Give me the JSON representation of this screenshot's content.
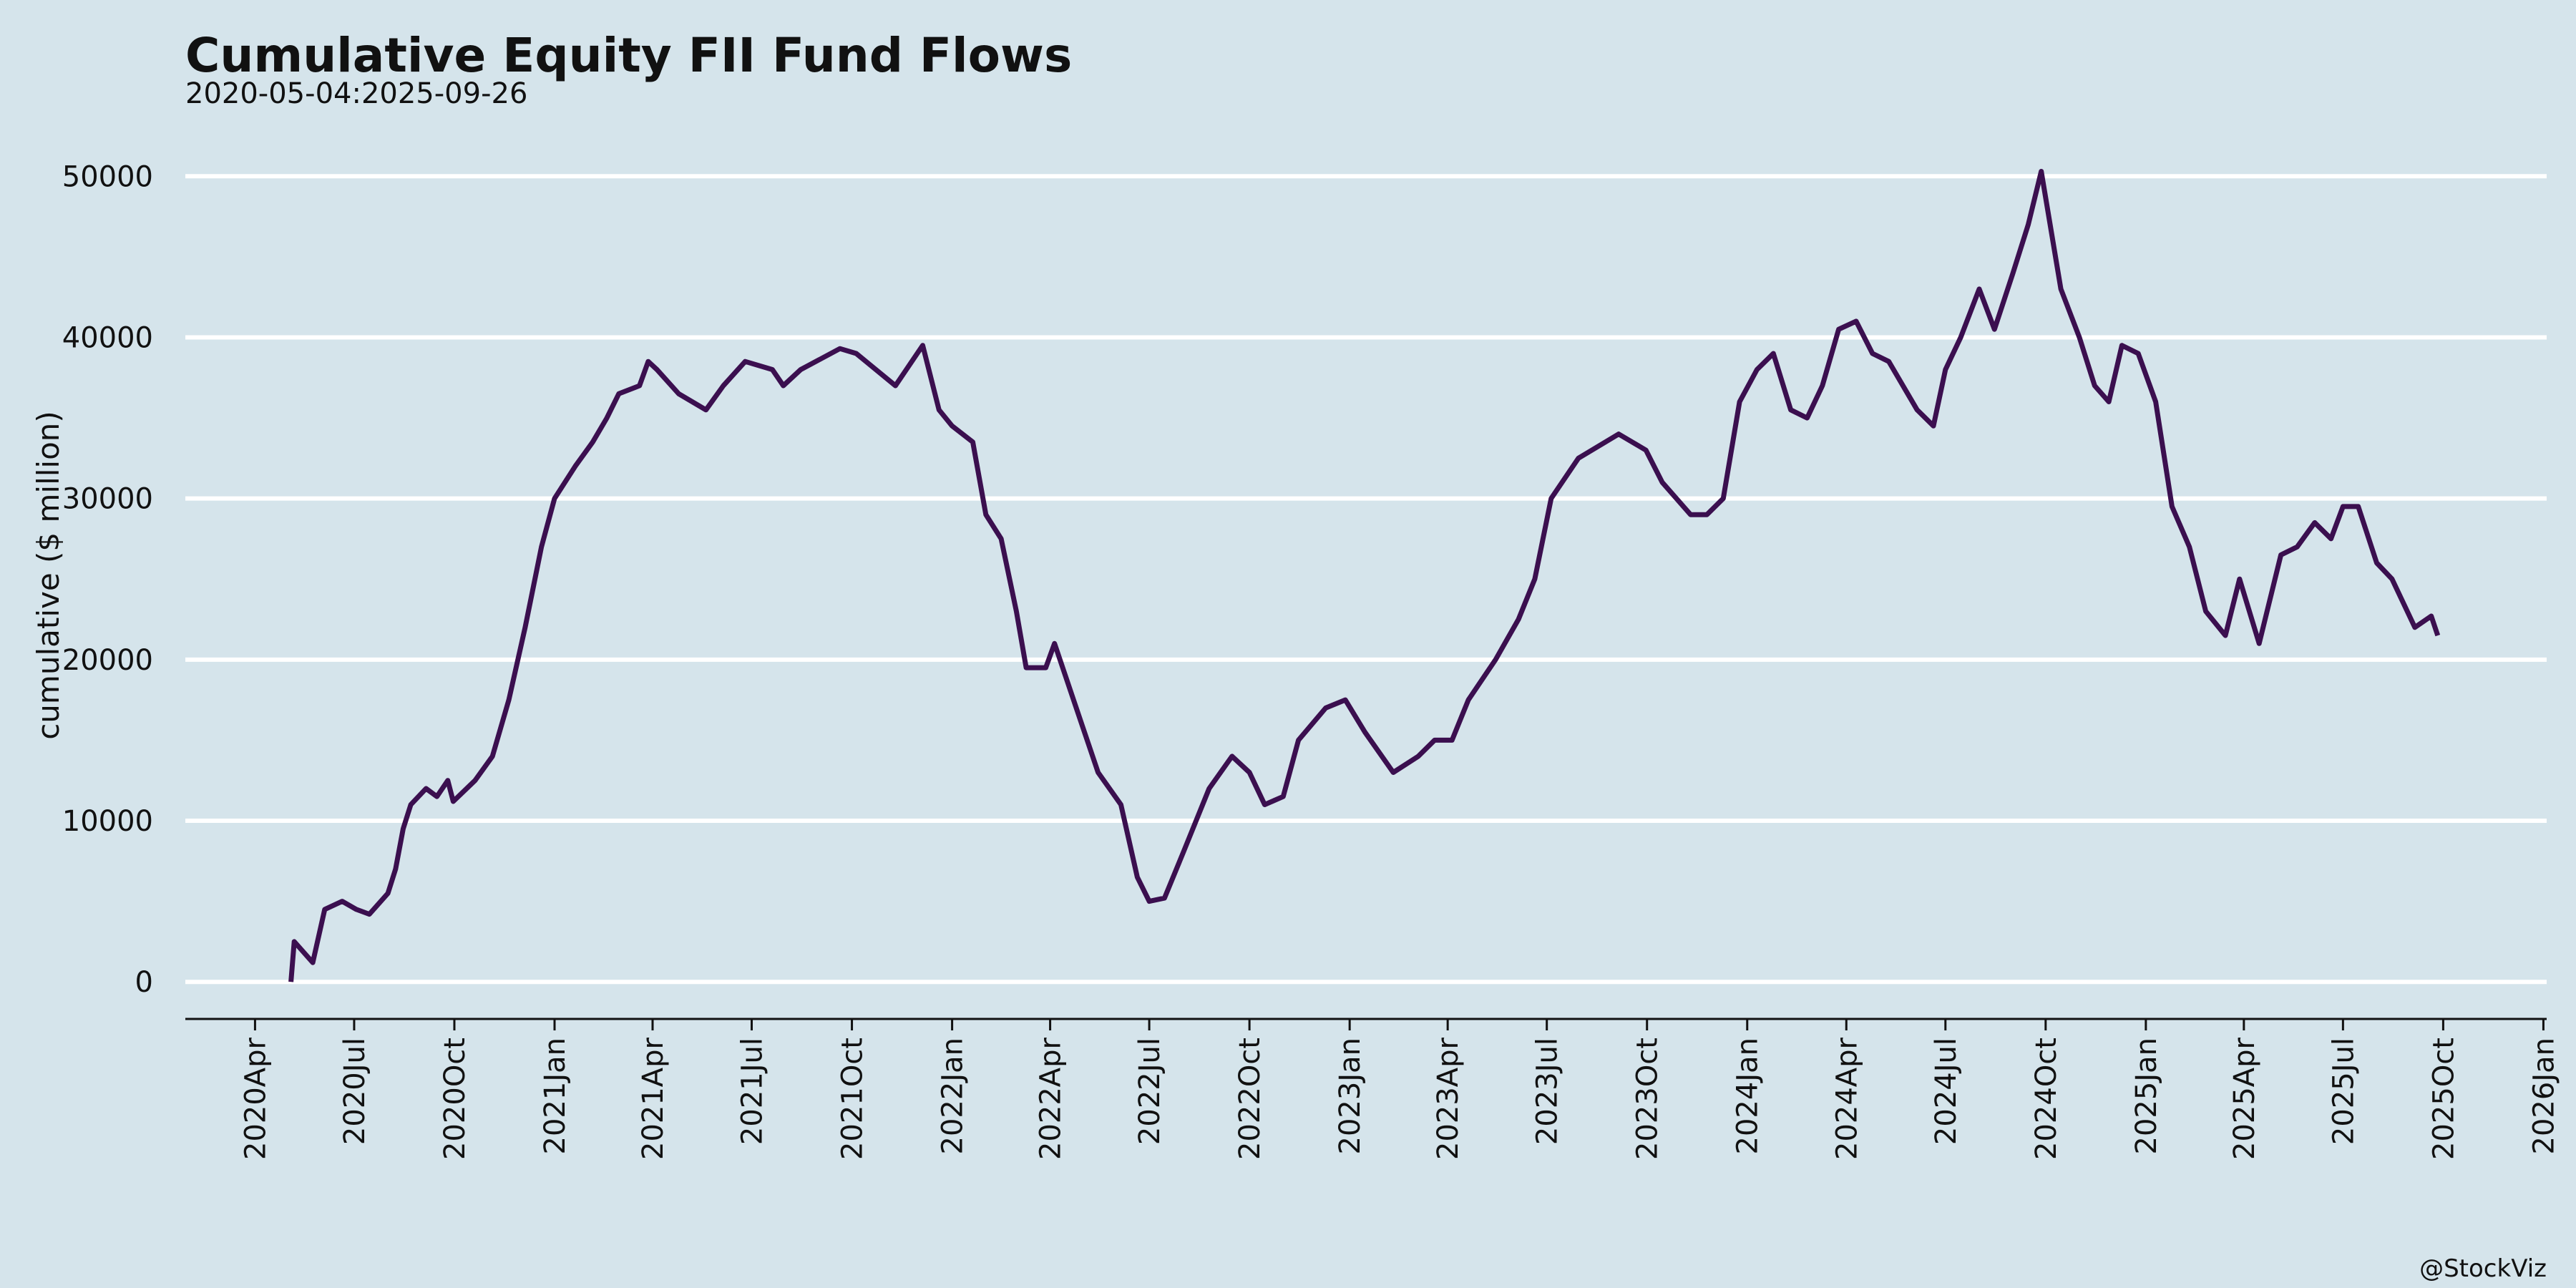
{
  "chart_data": {
    "type": "line",
    "title": "Cumulative Equity FII Fund Flows",
    "subtitle": "2020-05-04:2025-09-26",
    "y_label": "cumulative ($ million)",
    "caption": "@StockViz",
    "x": [
      "2020-05-04",
      "2020-05-07",
      "2020-05-24",
      "2020-06-04",
      "2020-06-20",
      "2020-07-03",
      "2020-07-15",
      "2020-08-01",
      "2020-08-08",
      "2020-08-15",
      "2020-08-22",
      "2020-09-05",
      "2020-09-15",
      "2020-09-25",
      "2020-09-30",
      "2020-10-20",
      "2020-11-05",
      "2020-11-20",
      "2020-12-05",
      "2020-12-20",
      "2021-01-01",
      "2021-01-20",
      "2021-02-05",
      "2021-02-18",
      "2021-03-01",
      "2021-03-20",
      "2021-03-28",
      "2021-04-05",
      "2021-04-25",
      "2021-05-20",
      "2021-06-05",
      "2021-06-25",
      "2021-07-20",
      "2021-07-30",
      "2021-08-15",
      "2021-09-20",
      "2021-10-05",
      "2021-11-10",
      "2021-12-05",
      "2021-12-20",
      "2022-01-01",
      "2022-01-20",
      "2022-02-01",
      "2022-02-15",
      "2022-03-01",
      "2022-03-10",
      "2022-03-28",
      "2022-04-05",
      "2022-04-25",
      "2022-05-15",
      "2022-06-05",
      "2022-06-20",
      "2022-07-01",
      "2022-07-15",
      "2022-08-01",
      "2022-08-25",
      "2022-09-15",
      "2022-10-01",
      "2022-10-15",
      "2022-11-01",
      "2022-11-15",
      "2022-12-10",
      "2022-12-28",
      "2023-01-15",
      "2023-02-10",
      "2023-03-05",
      "2023-03-20",
      "2023-04-05",
      "2023-04-20",
      "2023-05-15",
      "2023-06-05",
      "2023-06-20",
      "2023-07-05",
      "2023-07-30",
      "2023-09-05",
      "2023-09-30",
      "2023-10-15",
      "2023-11-10",
      "2023-11-25",
      "2023-12-10",
      "2023-12-25",
      "2024-01-10",
      "2024-01-25",
      "2024-02-10",
      "2024-02-25",
      "2024-03-10",
      "2024-03-25",
      "2024-04-10",
      "2024-04-25",
      "2024-05-10",
      "2024-06-05",
      "2024-06-20",
      "2024-07-01",
      "2024-07-15",
      "2024-08-01",
      "2024-08-15",
      "2024-09-01",
      "2024-09-15",
      "2024-09-27",
      "2024-10-15",
      "2024-11-01",
      "2024-11-15",
      "2024-11-28",
      "2024-12-10",
      "2024-12-25",
      "2025-01-10",
      "2025-01-25",
      "2025-02-10",
      "2025-02-25",
      "2025-03-15",
      "2025-03-28",
      "2025-04-15",
      "2025-05-05",
      "2025-05-20",
      "2025-06-05",
      "2025-06-20",
      "2025-07-01",
      "2025-07-15",
      "2025-08-01",
      "2025-08-15",
      "2025-09-05",
      "2025-09-20",
      "2025-09-26"
    ],
    "series": [
      {
        "name": "cumulative",
        "color": "#3b0f4f",
        "values": [
          0,
          2500,
          1200,
          4500,
          5000,
          4500,
          4200,
          5500,
          7000,
          9500,
          11000,
          12000,
          11500,
          12500,
          11200,
          12500,
          14000,
          17500,
          22000,
          27000,
          30000,
          32000,
          33500,
          35000,
          36500,
          37000,
          38500,
          38000,
          36500,
          35500,
          37000,
          38500,
          38000,
          37000,
          38000,
          39300,
          39000,
          37000,
          39500,
          35500,
          34500,
          33500,
          29000,
          27500,
          23000,
          19500,
          19500,
          21000,
          17000,
          13000,
          11000,
          6500,
          5000,
          5200,
          8000,
          12000,
          14000,
          13000,
          11000,
          11500,
          15000,
          17000,
          17500,
          15500,
          13000,
          14000,
          15000,
          15000,
          17500,
          20000,
          22500,
          25000,
          30000,
          32500,
          34000,
          33000,
          31000,
          29000,
          29000,
          30000,
          36000,
          38000,
          39000,
          35500,
          35000,
          37000,
          40500,
          41000,
          39000,
          38500,
          35500,
          34500,
          38000,
          40000,
          43000,
          40500,
          44000,
          47000,
          50300,
          43000,
          40000,
          37000,
          36000,
          39500,
          39000,
          36000,
          29500,
          27000,
          23000,
          21500,
          25000,
          21000,
          26500,
          27000,
          28500,
          27500,
          29500,
          29500,
          26000,
          25000,
          22000,
          22700,
          21500
        ]
      }
    ],
    "xlim": [
      "2020-01-28",
      "2026-01-04"
    ],
    "xticks": [
      {
        "value": "2020-04-01",
        "label": "2020Apr"
      },
      {
        "value": "2020-07-01",
        "label": "2020Jul"
      },
      {
        "value": "2020-10-01",
        "label": "2020Oct"
      },
      {
        "value": "2021-01-01",
        "label": "2021Jan"
      },
      {
        "value": "2021-04-01",
        "label": "2021Apr"
      },
      {
        "value": "2021-07-01",
        "label": "2021Jul"
      },
      {
        "value": "2021-10-01",
        "label": "2021Oct"
      },
      {
        "value": "2022-01-01",
        "label": "2022Jan"
      },
      {
        "value": "2022-04-01",
        "label": "2022Apr"
      },
      {
        "value": "2022-07-01",
        "label": "2022Jul"
      },
      {
        "value": "2022-10-01",
        "label": "2022Oct"
      },
      {
        "value": "2023-01-01",
        "label": "2023Jan"
      },
      {
        "value": "2023-04-01",
        "label": "2023Apr"
      },
      {
        "value": "2023-07-01",
        "label": "2023Jul"
      },
      {
        "value": "2023-10-01",
        "label": "2023Oct"
      },
      {
        "value": "2024-01-01",
        "label": "2024Jan"
      },
      {
        "value": "2024-04-01",
        "label": "2024Apr"
      },
      {
        "value": "2024-07-01",
        "label": "2024Jul"
      },
      {
        "value": "2024-10-01",
        "label": "2024Oct"
      },
      {
        "value": "2025-01-01",
        "label": "2025Jan"
      },
      {
        "value": "2025-04-01",
        "label": "2025Apr"
      },
      {
        "value": "2025-07-01",
        "label": "2025Jul"
      },
      {
        "value": "2025-10-01",
        "label": "2025Oct"
      },
      {
        "value": "2026-01-01",
        "label": "2026Jan"
      }
    ],
    "ylim": [
      -2300,
      51300
    ],
    "yticks": [
      0,
      10000,
      20000,
      30000,
      40000,
      50000
    ],
    "grid": true
  }
}
